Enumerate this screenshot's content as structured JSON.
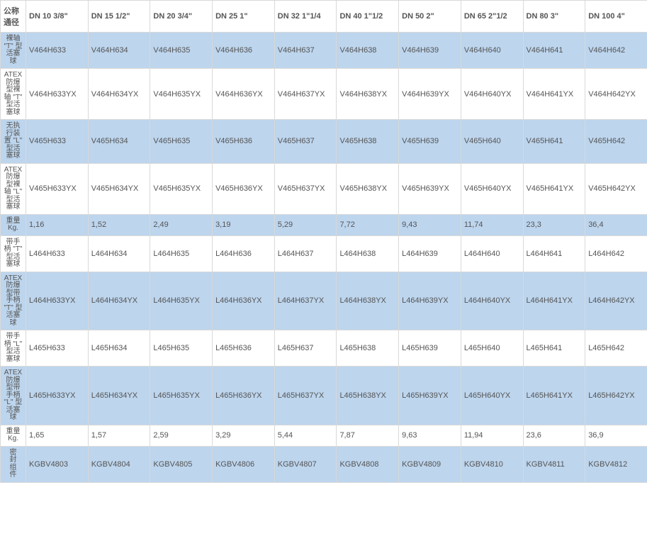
{
  "table": {
    "type": "table",
    "background_color": "#ffffff",
    "alt_row_color": "#bdd5ed",
    "border_color": "#d9d9d9",
    "text_color": "#555555",
    "header_fontsize": 11,
    "cell_fontsize": 11,
    "rowheader_fontsize": 10,
    "corner_header": "公称通径",
    "columns": [
      "DN 10 3/8\"",
      "DN 15  1/2\"",
      "DN 20  3/4\"",
      "DN 25 1\"",
      "DN 32 1\"1/4",
      "DN 40 1\"1/2",
      "DN 50  2\"",
      "DN 65 2\"1/2",
      "DN 80 3\"",
      "DN 100 4\""
    ],
    "rows": [
      {
        "alt": true,
        "label": "裸轴 \"T\" 型活塞球",
        "cells": [
          "V464H633",
          "V464H634",
          "V464H635",
          "V464H636",
          "V464H637",
          "V464H638",
          "V464H639",
          "V464H640",
          "V464H641",
          "V464H642"
        ]
      },
      {
        "alt": false,
        "label": "ATEX防爆型裸轴 \"T\" 型活塞球",
        "cells": [
          "V464H633YX",
          "V464H634YX",
          "V464H635YX",
          "V464H636YX",
          "V464H637YX",
          "V464H638YX",
          "V464H639YX",
          "V464H640YX",
          "V464H641YX",
          "V464H642YX"
        ]
      },
      {
        "alt": true,
        "label": "无执行装置 \"L\" 型活塞球",
        "cells": [
          "V465H633",
          "V465H634",
          "V465H635",
          "V465H636",
          "V465H637",
          "V465H638",
          "V465H639",
          "V465H640",
          "V465H641",
          "V465H642"
        ]
      },
      {
        "alt": false,
        "label": "ATEX防爆型裸轴 \"L\" 型活塞球",
        "cells": [
          "V465H633YX",
          "V465H634YX",
          "V465H635YX",
          "V465H636YX",
          "V465H637YX",
          "V465H638YX",
          "V465H639YX",
          "V465H640YX",
          "V465H641YX",
          "V465H642YX"
        ]
      },
      {
        "alt": true,
        "label": "重量 Kg.",
        "cells": [
          "1,16",
          "1,52",
          "2,49",
          "3,19",
          "5,29",
          "7,72",
          "9,43",
          "11,74",
          "23,3",
          "36,4"
        ]
      },
      {
        "alt": false,
        "label": "带手柄 \"T\" 型活塞球",
        "cells": [
          "L464H633",
          "L464H634",
          "L464H635",
          "L464H636",
          "L464H637",
          "L464H638",
          "L464H639",
          "L464H640",
          "L464H641",
          "L464H642"
        ]
      },
      {
        "alt": true,
        "label": "ATEX防爆型带手柄 \"T\" 型活塞球",
        "cells": [
          "L464H633YX",
          "L464H634YX",
          "L464H635YX",
          "L464H636YX",
          "L464H637YX",
          "L464H638YX",
          "L464H639YX",
          "L464H640YX",
          "L464H641YX",
          "L464H642YX"
        ]
      },
      {
        "alt": false,
        "label": "带手柄 \"L\" 型活塞球",
        "cells": [
          "L465H633",
          "L465H634",
          "L465H635",
          "L465H636",
          "L465H637",
          "L465H638",
          "L465H639",
          "L465H640",
          "L465H641",
          "L465H642"
        ]
      },
      {
        "alt": true,
        "label": "ATEX防爆型带手柄 \"L\" 型活塞球",
        "cells": [
          "L465H633YX",
          "L465H634YX",
          "L465H635YX",
          "L465H636YX",
          "L465H637YX",
          "L465H638YX",
          "L465H639YX",
          "L465H640YX",
          "L465H641YX",
          "L465H642YX"
        ]
      },
      {
        "alt": false,
        "label": "重量 Kg.",
        "cells": [
          "1,65",
          "1,57",
          "2,59",
          "3,29",
          "5,44",
          "7,87",
          "9,63",
          "11,94",
          "23,6",
          "36,9"
        ]
      },
      {
        "alt": true,
        "label": "密封组件",
        "cells": [
          "KGBV4803",
          "KGBV4804",
          "KGBV4805",
          "KGBV4806",
          "KGBV4807",
          "KGBV4808",
          "KGBV4809",
          "KGBV4810",
          "KGBV4811",
          "KGBV4812"
        ]
      }
    ]
  }
}
